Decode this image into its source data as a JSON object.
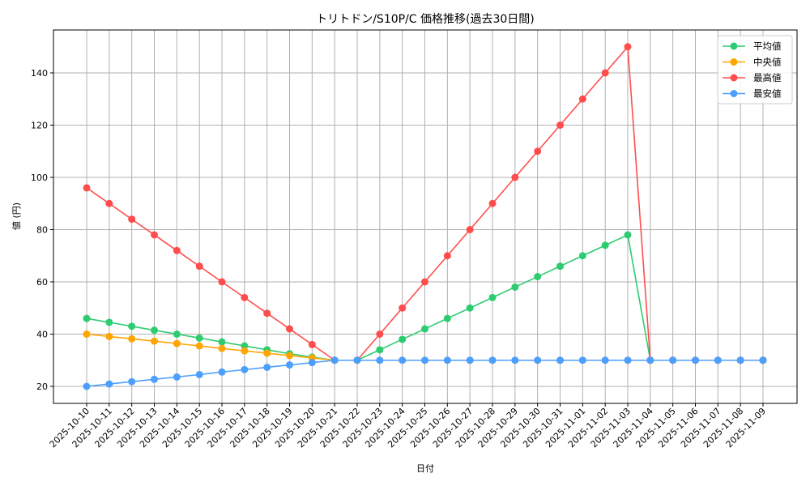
{
  "chart_data": {
    "type": "line",
    "title": "トリトドン/S10P/C 価格推移(過去30日間)",
    "xlabel": "日付",
    "ylabel": "値 (円)",
    "ylim": [
      13.5,
      156.5
    ],
    "yticks": [
      20,
      40,
      60,
      80,
      100,
      120,
      140
    ],
    "grid": true,
    "legend_position": "upper right",
    "categories": [
      "2025-10-10",
      "2025-10-11",
      "2025-10-12",
      "2025-10-13",
      "2025-10-14",
      "2025-10-15",
      "2025-10-16",
      "2025-10-17",
      "2025-10-18",
      "2025-10-19",
      "2025-10-20",
      "2025-10-21",
      "2025-10-22",
      "2025-10-23",
      "2025-10-24",
      "2025-10-25",
      "2025-10-26",
      "2025-10-27",
      "2025-10-28",
      "2025-10-29",
      "2025-10-30",
      "2025-10-31",
      "2025-11-01",
      "2025-11-02",
      "2025-11-03",
      "2025-11-04",
      "2025-11-05",
      "2025-11-06",
      "2025-11-07",
      "2025-11-08",
      "2025-11-09"
    ],
    "series": [
      {
        "name": "平均値",
        "color": "#2ecc71",
        "values": [
          46,
          44.5,
          43,
          41.5,
          40,
          38.5,
          37,
          35.5,
          34,
          32.5,
          31.2,
          30,
          30,
          34,
          38,
          42,
          46,
          50,
          54,
          58,
          62,
          66,
          70,
          74,
          78,
          30,
          30,
          30,
          30,
          30,
          30
        ]
      },
      {
        "name": "中央値",
        "color": "#ffa500",
        "values": [
          40,
          39.1,
          38.2,
          37.3,
          36.4,
          35.5,
          34.5,
          33.6,
          32.7,
          31.8,
          30.9,
          30,
          30,
          30,
          30,
          30,
          30,
          30,
          30,
          30,
          30,
          30,
          30,
          30,
          30,
          30,
          30,
          30,
          30,
          30,
          30
        ]
      },
      {
        "name": "最高値",
        "color": "#ff4d4d",
        "values": [
          96,
          90,
          84,
          78,
          72,
          66,
          60,
          54,
          48,
          42,
          36,
          30,
          30,
          40,
          50,
          60,
          70,
          80,
          90,
          100,
          110,
          120,
          130,
          140,
          150,
          30,
          30,
          30,
          30,
          30,
          30
        ]
      },
      {
        "name": "最安値",
        "color": "#4d9fff",
        "values": [
          20,
          20.9,
          21.8,
          22.7,
          23.6,
          24.5,
          25.5,
          26.4,
          27.3,
          28.2,
          29.1,
          30,
          30,
          30,
          30,
          30,
          30,
          30,
          30,
          30,
          30,
          30,
          30,
          30,
          30,
          30,
          30,
          30,
          30,
          30,
          30
        ]
      }
    ]
  }
}
